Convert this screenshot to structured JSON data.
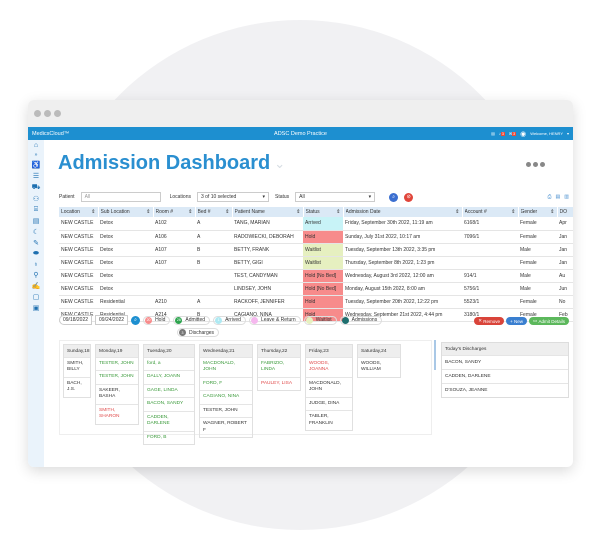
{
  "app": {
    "logo": "MedicsCloud™",
    "title": "ADSC Demo Practice",
    "user": "Welcome, HENRY",
    "notif_badge_1": "3",
    "notif_badge_2": "3"
  },
  "page_title": "Admission Dashboard",
  "filters": {
    "patient_label": "Patient",
    "patient_placeholder": "All",
    "locations_label": "Locations",
    "locations_value": "3 of 10 selected",
    "status_label": "Status",
    "status_value": "All"
  },
  "table": {
    "columns": [
      "Location",
      "Sub Location",
      "Room #",
      "Bed #",
      "Patient Name",
      "Status",
      "Admission Date",
      "Account #",
      "Gender",
      "DO"
    ],
    "rows": [
      [
        "NEW CASTLE",
        "Detox",
        "A102",
        "A",
        "TANG, MARIAN",
        "Arrived",
        "Friday, September 30th 2022, 11:19 am",
        "6168/1",
        "Female",
        "Apr"
      ],
      [
        "NEW CASTLE",
        "Detox",
        "A106",
        "A",
        "RADOWIECKI, DEBORAH",
        "Hold",
        "Sunday, July 31st 2022, 10:17 am",
        "7096/1",
        "Female",
        "Jan"
      ],
      [
        "NEW CASTLE",
        "Detox",
        "A107",
        "B",
        "BETTY, FRANK",
        "Waitlist",
        "Tuesday, September 13th 2022, 3:35 pm",
        "",
        "Male",
        "Jan"
      ],
      [
        "NEW CASTLE",
        "Detox",
        "A107",
        "B",
        "BETTY, GIGI",
        "Waitlist",
        "Thursday, September 8th 2022, 1:23 pm",
        "",
        "Female",
        "Jan"
      ],
      [
        "NEW CASTLE",
        "Detox",
        "",
        "",
        "TEST, CANDYMAN",
        "Hold [No Bed]",
        "Wednesday, August 3rd 2022, 12:00 am",
        "914/1",
        "Male",
        "Au"
      ],
      [
        "NEW CASTLE",
        "Detox",
        "",
        "",
        "LINDSEY, JOHN",
        "Hold [No Bed]",
        "Monday, August 15th 2022, 8:00 am",
        "5756/1",
        "Male",
        "Jun"
      ],
      [
        "NEW CASTLE",
        "Residential",
        "A210",
        "A",
        "RACKOFF, JENNIFER",
        "Hold",
        "Tuesday, September 20th 2022, 12:22 pm",
        "5523/1",
        "Female",
        "No"
      ],
      [
        "NEW CASTLE",
        "Residential",
        "A214",
        "B",
        "CAGIANO, NINA",
        "Hold",
        "Wednesday, September 21st 2022, 4:44 pm",
        "3180/1",
        "Female",
        "Feb"
      ]
    ]
  },
  "range": {
    "from": "09/18/2022",
    "to": "09/24/2022"
  },
  "legend": [
    {
      "label": "Hold",
      "count": "20",
      "color": "#f78b8b"
    },
    {
      "label": "Admitted",
      "count": "26",
      "color": "#2ea44f"
    },
    {
      "label": "Arrived",
      "count": "1",
      "color": "#aee9f2"
    },
    {
      "label": "Leave & Return",
      "count": "",
      "color": "#f5b8ee"
    },
    {
      "label": "Waitlist",
      "count": "",
      "color": "#e6f0c0"
    },
    {
      "label": "Admissions",
      "count": "",
      "color": "#1f6f6f"
    },
    {
      "label": "Discharges",
      "count": "3",
      "color": "#777777"
    }
  ],
  "actions": {
    "remove": "Remove",
    "new": "New",
    "admit_details": "Admit Details"
  },
  "calendar": [
    {
      "day": "Sunday,18",
      "items": [
        {
          "n": "SMITH, BILLY",
          "c": ""
        },
        {
          "n": "BACH, J.S.",
          "c": ""
        }
      ]
    },
    {
      "day": "Monday,19",
      "items": [
        {
          "n": "TESTER, JOHN",
          "c": "g"
        },
        {
          "n": "TESTER, JOHN",
          "c": "g"
        },
        {
          "n": "SAKEER, BASHA",
          "c": ""
        },
        {
          "n": "SMITH, SHARON",
          "c": "r"
        }
      ]
    },
    {
      "day": "Tuesday,20",
      "items": [
        {
          "n": "ford, a",
          "c": "g"
        },
        {
          "n": "DALLY, JOANN",
          "c": "g"
        },
        {
          "n": "GAGE, LINDA",
          "c": "g"
        },
        {
          "n": "BACON, SANDY",
          "c": "g"
        },
        {
          "n": "CADDEN, DARLENE",
          "c": "g"
        },
        {
          "n": "FORD, B",
          "c": "g"
        }
      ]
    },
    {
      "day": "Wednesday,21",
      "items": [
        {
          "n": "MACDONALD, JOHN",
          "c": "g"
        },
        {
          "n": "FORD, F",
          "c": "g"
        },
        {
          "n": "CAGIANO, NINA",
          "c": "g"
        },
        {
          "n": "TESTER, JOHN",
          "c": ""
        },
        {
          "n": "WAGNER, ROBERT F",
          "c": ""
        }
      ]
    },
    {
      "day": "Thursday,22",
      "items": [
        {
          "n": "FABRIZIO, LINDA",
          "c": "g"
        },
        {
          "n": "PAULEY, LISA",
          "c": "r"
        }
      ]
    },
    {
      "day": "Friday,23",
      "items": [
        {
          "n": "WOODS, JOANNA",
          "c": "r"
        },
        {
          "n": "MACDONALD, JOHN",
          "c": ""
        },
        {
          "n": "JUDGE, DINA",
          "c": ""
        },
        {
          "n": "TABLER, FRANKLIN",
          "c": ""
        }
      ]
    },
    {
      "day": "Saturday,24",
      "items": [
        {
          "n": "WOODS, WILLIAM",
          "c": ""
        }
      ]
    }
  ],
  "discharges": {
    "title": "Today's Discharges",
    "items": [
      "BACON, SANDY",
      "CADDEN, DARLENE",
      "D'SOUZA, JEANNE"
    ]
  }
}
